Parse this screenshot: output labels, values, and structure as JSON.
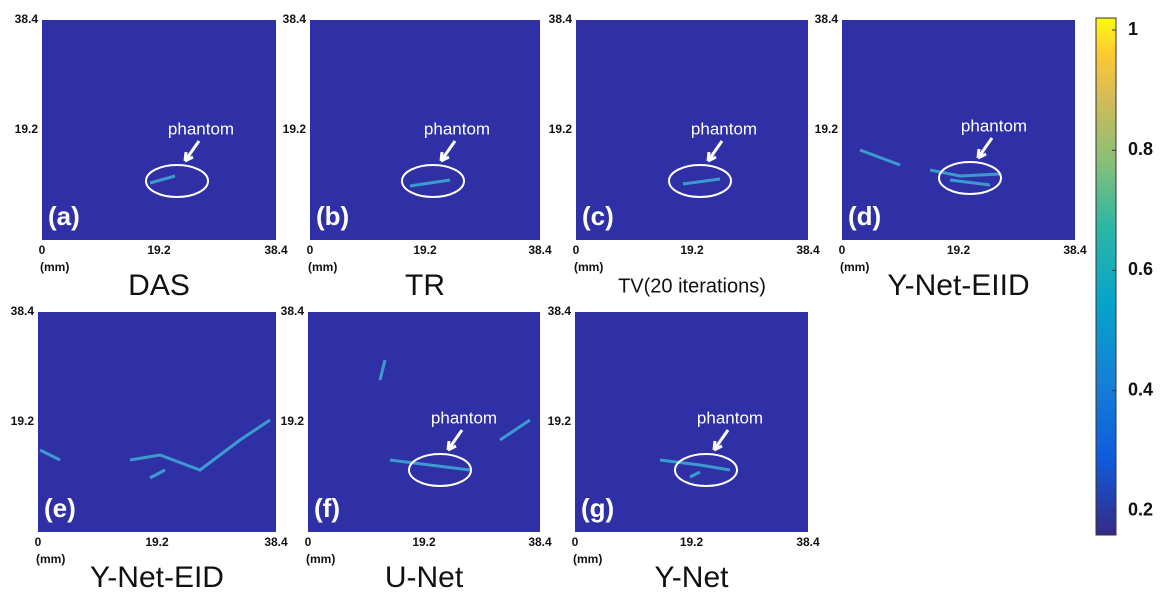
{
  "panels": [
    {
      "tag": "(a)",
      "title": "DAS",
      "annotation": "phantom"
    },
    {
      "tag": "(b)",
      "title": "TR",
      "annotation": "phantom"
    },
    {
      "tag": "(c)",
      "title": "TV(20 iterations)",
      "annotation": "phantom"
    },
    {
      "tag": "(d)",
      "title": "Y-Net-EIID",
      "annotation": "phantom"
    },
    {
      "tag": "(e)",
      "title": "Y-Net-EID"
    },
    {
      "tag": "(f)",
      "title": "U-Net",
      "annotation": "phantom"
    },
    {
      "tag": "(g)",
      "title": "Y-Net",
      "annotation": "phantom"
    }
  ],
  "axis": {
    "x_ticks": [
      "0",
      "19.2",
      "38.4"
    ],
    "y_ticks": [
      "38.4",
      "19.2"
    ],
    "unit": "(mm)"
  },
  "colorbar": {
    "lim": [
      0.16,
      1.02
    ],
    "ticks": [
      1,
      0.8,
      0.6,
      0.4,
      0.2
    ]
  }
}
